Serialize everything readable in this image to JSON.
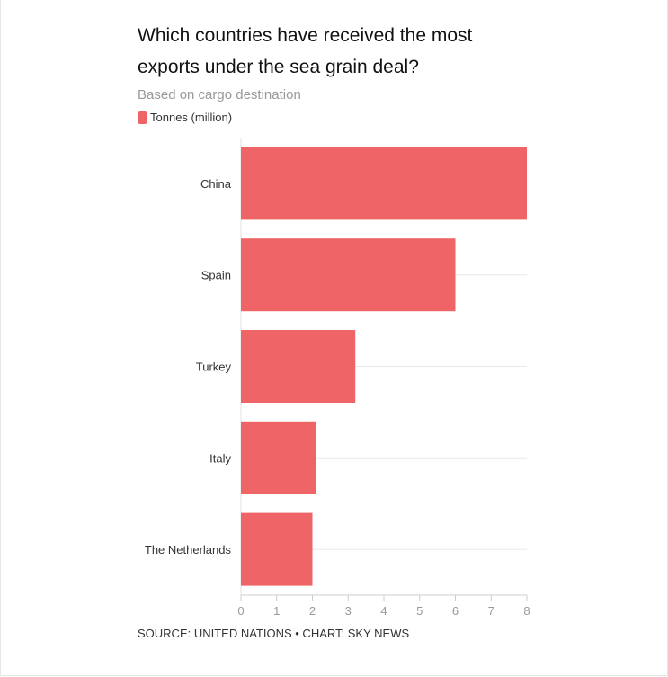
{
  "header": {
    "title": "Which countries have received the most exports under the sea grain deal?",
    "subtitle": "Based on cargo destination"
  },
  "legend": {
    "label": "Tonnes (million)",
    "color": "#ef6567"
  },
  "footer": {
    "source": "SOURCE: UNITED NATIONS • CHART: SKY NEWS"
  },
  "chart_data": {
    "type": "bar",
    "orientation": "horizontal",
    "title": "Which countries have received the most exports under the sea grain deal?",
    "subtitle": "Based on cargo destination",
    "categories": [
      "China",
      "Spain",
      "Turkey",
      "Italy",
      "The Netherlands"
    ],
    "series": [
      {
        "name": "Tonnes (million)",
        "values": [
          8.0,
          6.0,
          3.2,
          2.1,
          2.0
        ],
        "color": "#ef6567"
      }
    ],
    "xlim": [
      0,
      8
    ],
    "xticks": [
      0,
      1,
      2,
      3,
      4,
      5,
      6,
      7,
      8
    ],
    "grid": true,
    "legend_position": "top-left"
  }
}
